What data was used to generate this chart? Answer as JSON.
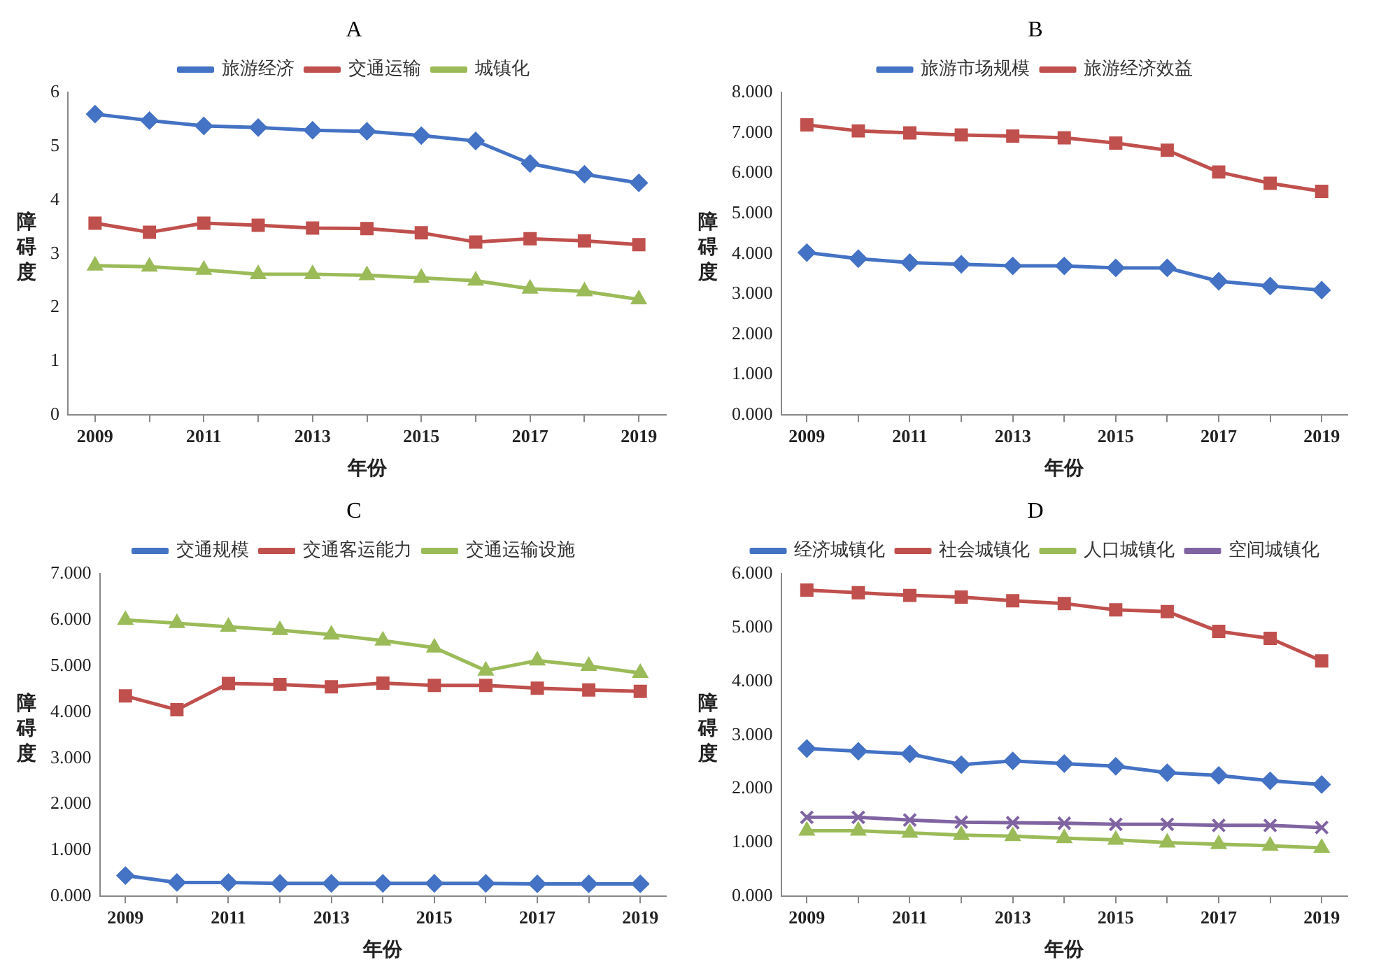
{
  "chart_data": [
    {
      "type": "line",
      "title": "A",
      "xlabel": "年份",
      "ylabel": "障碍度",
      "categories": [
        "2009",
        null,
        "2011",
        null,
        "2013",
        null,
        "2015",
        null,
        "2017",
        null,
        "2019"
      ],
      "ylim": [
        0,
        6
      ],
      "yticks": [
        0,
        1,
        2,
        3,
        4,
        5,
        6
      ],
      "grid": false,
      "legend": "top",
      "series": [
        {
          "name": "旅游经济",
          "color": "#4472c4",
          "marker": "diamond",
          "values": [
            5.6,
            5.48,
            5.38,
            5.35,
            5.3,
            5.28,
            5.2,
            5.1,
            4.68,
            4.48,
            4.32
          ]
        },
        {
          "name": "交通运输",
          "color": "#c0504d",
          "marker": "square",
          "values": [
            3.57,
            3.4,
            3.57,
            3.53,
            3.48,
            3.47,
            3.39,
            3.22,
            3.28,
            3.24,
            3.17
          ]
        },
        {
          "name": "城镇化",
          "color": "#9bbb59",
          "marker": "triangle",
          "values": [
            2.78,
            2.76,
            2.7,
            2.62,
            2.62,
            2.6,
            2.55,
            2.5,
            2.35,
            2.3,
            2.15
          ]
        }
      ]
    },
    {
      "type": "line",
      "title": "B",
      "xlabel": "年份",
      "ylabel": "障碍度",
      "categories": [
        "2009",
        null,
        "2011",
        null,
        "2013",
        null,
        "2015",
        null,
        "2017",
        null,
        "2019"
      ],
      "ylim": [
        0,
        8
      ],
      "yticks": [
        {
          "value": 0,
          "label": "0.000"
        },
        {
          "value": 1,
          "label": "1.000"
        },
        {
          "value": 2,
          "label": "2.000"
        },
        {
          "value": 3,
          "label": "3.000"
        },
        {
          "value": 4,
          "label": "4.000"
        },
        {
          "value": 5,
          "label": "5.000"
        },
        {
          "value": 6,
          "label": "6.000"
        },
        {
          "value": 7,
          "label": "7.000"
        },
        {
          "value": 8,
          "label": "8.000"
        }
      ],
      "grid": false,
      "legend": "top",
      "series": [
        {
          "name": "旅游市场规模",
          "color": "#4472c4",
          "marker": "diamond",
          "values": [
            4.03,
            3.88,
            3.78,
            3.74,
            3.7,
            3.7,
            3.65,
            3.65,
            3.32,
            3.2,
            3.1
          ]
        },
        {
          "name": "旅游经济效益",
          "color": "#c0504d",
          "marker": "square",
          "values": [
            7.2,
            7.05,
            7.0,
            6.95,
            6.92,
            6.88,
            6.75,
            6.57,
            6.03,
            5.75,
            5.55
          ]
        }
      ]
    },
    {
      "type": "line",
      "title": "C",
      "xlabel": "年份",
      "ylabel": "障碍度",
      "categories": [
        "2009",
        null,
        "2011",
        null,
        "2013",
        null,
        "2015",
        null,
        "2017",
        null,
        "2019"
      ],
      "ylim": [
        0,
        7
      ],
      "yticks": [
        {
          "value": 0,
          "label": "0.000"
        },
        {
          "value": 1,
          "label": "1.000"
        },
        {
          "value": 2,
          "label": "2.000"
        },
        {
          "value": 3,
          "label": "3.000"
        },
        {
          "value": 4,
          "label": "4.000"
        },
        {
          "value": 5,
          "label": "5.000"
        },
        {
          "value": 6,
          "label": "6.000"
        },
        {
          "value": 7,
          "label": "7.000"
        }
      ],
      "grid": false,
      "legend": "top",
      "series": [
        {
          "name": "交通规模",
          "color": "#4472c4",
          "marker": "diamond",
          "values": [
            0.45,
            0.3,
            0.3,
            0.28,
            0.28,
            0.28,
            0.28,
            0.28,
            0.27,
            0.27,
            0.27
          ]
        },
        {
          "name": "交通客运能力",
          "color": "#c0504d",
          "marker": "square",
          "values": [
            4.35,
            4.05,
            4.62,
            4.6,
            4.55,
            4.63,
            4.58,
            4.58,
            4.52,
            4.48,
            4.45
          ]
        },
        {
          "name": "交通运输设施",
          "color": "#9bbb59",
          "marker": "triangle",
          "values": [
            6.0,
            5.93,
            5.85,
            5.78,
            5.68,
            5.55,
            5.4,
            4.9,
            5.12,
            5.0,
            4.85
          ]
        }
      ]
    },
    {
      "type": "line",
      "title": "D",
      "xlabel": "年份",
      "ylabel": "障碍度",
      "categories": [
        "2009",
        null,
        "2011",
        null,
        "2013",
        null,
        "2015",
        null,
        "2017",
        null,
        "2019"
      ],
      "ylim": [
        0,
        6
      ],
      "yticks": [
        {
          "value": 0,
          "label": "0.000"
        },
        {
          "value": 1,
          "label": "1.000"
        },
        {
          "value": 2,
          "label": "2.000"
        },
        {
          "value": 3,
          "label": "3.000"
        },
        {
          "value": 4,
          "label": "4.000"
        },
        {
          "value": 5,
          "label": "5.000"
        },
        {
          "value": 6,
          "label": "6.000"
        }
      ],
      "grid": false,
      "legend": "top",
      "series": [
        {
          "name": "经济城镇化",
          "color": "#4472c4",
          "marker": "diamond",
          "values": [
            2.75,
            2.7,
            2.65,
            2.45,
            2.52,
            2.47,
            2.42,
            2.3,
            2.25,
            2.15,
            2.08
          ]
        },
        {
          "name": "社会城镇化",
          "color": "#c0504d",
          "marker": "square",
          "values": [
            5.7,
            5.65,
            5.6,
            5.57,
            5.5,
            5.45,
            5.33,
            5.3,
            4.93,
            4.8,
            4.38
          ]
        },
        {
          "name": "人口城镇化",
          "color": "#9bbb59",
          "marker": "triangle",
          "values": [
            1.22,
            1.22,
            1.18,
            1.14,
            1.12,
            1.08,
            1.05,
            1.0,
            0.97,
            0.94,
            0.9
          ]
        },
        {
          "name": "空间城镇化",
          "color": "#8064a2",
          "marker": "cross",
          "values": [
            1.47,
            1.47,
            1.42,
            1.38,
            1.37,
            1.36,
            1.34,
            1.34,
            1.32,
            1.32,
            1.28
          ]
        }
      ]
    }
  ]
}
